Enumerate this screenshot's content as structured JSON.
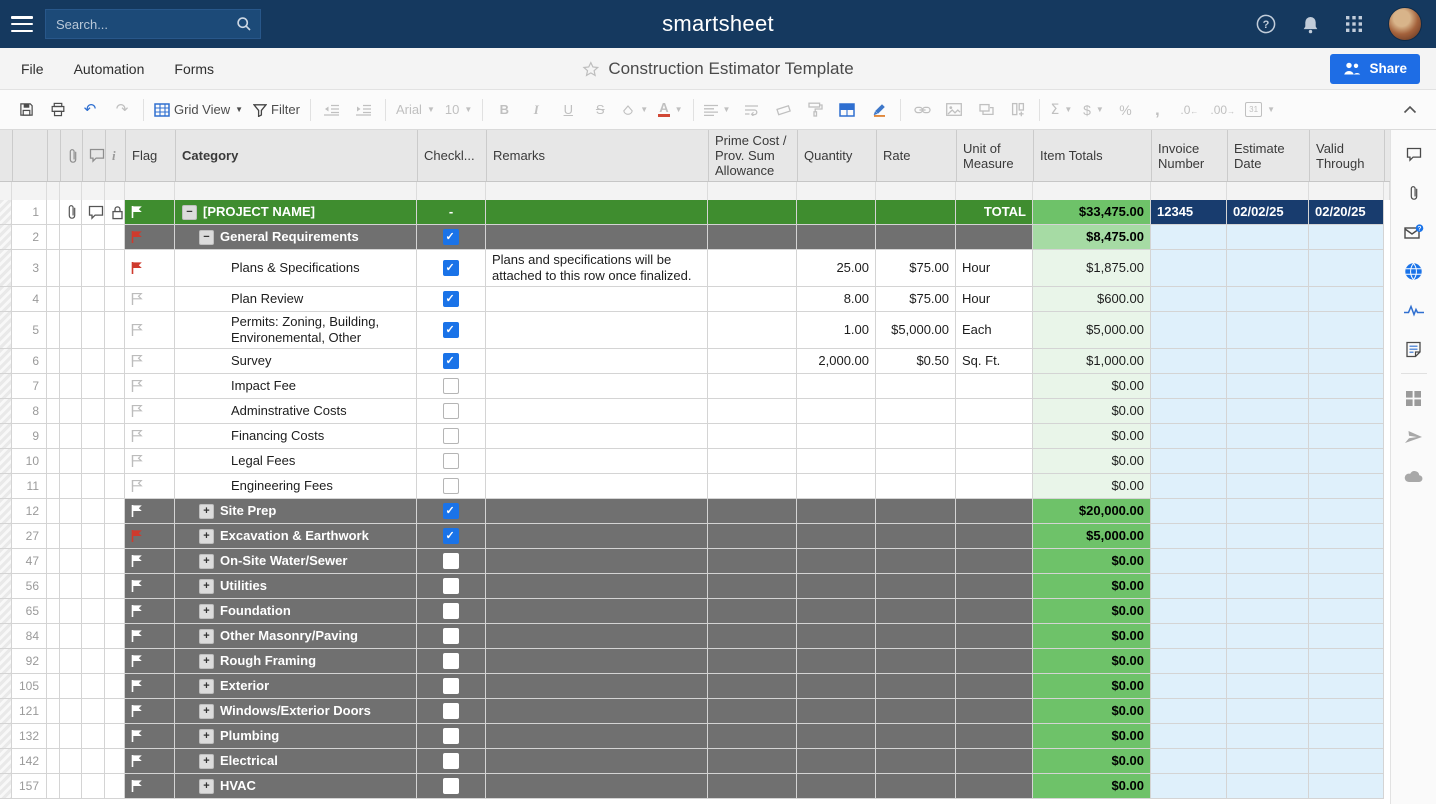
{
  "topbar": {
    "logo": "smartsheet",
    "search_placeholder": "Search..."
  },
  "menubar": {
    "items": [
      "File",
      "Automation",
      "Forms"
    ],
    "title": "Construction Estimator Template",
    "share_label": "Share"
  },
  "toolbar": {
    "items": [
      {
        "name": "save-icon",
        "icon": "save",
        "state": "enabled"
      },
      {
        "name": "print-icon",
        "icon": "print",
        "state": "enabled"
      },
      {
        "name": "undo-icon",
        "icon": "undo",
        "state": "enabled",
        "blue": true
      },
      {
        "name": "redo-icon",
        "icon": "redo",
        "state": "disabled"
      },
      {
        "name": "divider"
      },
      {
        "name": "grid-view-button",
        "icon": "gridview",
        "label": "Grid View",
        "caret": true,
        "state": "enabled"
      },
      {
        "name": "filter-button",
        "icon": "funnel",
        "label": "Filter",
        "state": "enabled"
      },
      {
        "name": "divider"
      },
      {
        "name": "outdent-icon",
        "icon": "outdent",
        "state": "disabled"
      },
      {
        "name": "indent-icon",
        "icon": "indent",
        "state": "disabled"
      },
      {
        "name": "divider"
      },
      {
        "name": "font-select",
        "label": "Arial",
        "caret": true,
        "state": "disabled"
      },
      {
        "name": "font-size-select",
        "label": "10",
        "caret": true,
        "state": "disabled"
      },
      {
        "name": "divider"
      },
      {
        "name": "bold-icon",
        "icon": "bold",
        "state": "disabled"
      },
      {
        "name": "italic-icon",
        "icon": "italic",
        "state": "disabled"
      },
      {
        "name": "underline-icon",
        "icon": "underline",
        "state": "disabled"
      },
      {
        "name": "strikethrough-icon",
        "icon": "strike",
        "state": "disabled"
      },
      {
        "name": "fill-color-icon",
        "icon": "fill",
        "caret": true,
        "state": "disabled"
      },
      {
        "name": "text-color-icon",
        "icon": "textcolor",
        "caret": true,
        "state": "disabled"
      },
      {
        "name": "divider"
      },
      {
        "name": "align-icon",
        "icon": "align",
        "caret": true,
        "state": "disabled"
      },
      {
        "name": "wrap-text-icon",
        "icon": "wrap",
        "state": "disabled"
      },
      {
        "name": "erase-icon",
        "icon": "erase",
        "state": "disabled"
      },
      {
        "name": "format-painter-icon",
        "icon": "painter",
        "state": "disabled"
      },
      {
        "name": "borders-icon",
        "icon": "borders",
        "state": "enabled"
      },
      {
        "name": "highlight-icon",
        "icon": "highlighter",
        "state": "enabled"
      },
      {
        "name": "divider"
      },
      {
        "name": "link-icon",
        "icon": "link",
        "state": "disabled"
      },
      {
        "name": "image-icon",
        "icon": "image",
        "state": "disabled"
      },
      {
        "name": "card-icon",
        "icon": "card",
        "state": "disabled"
      },
      {
        "name": "insert-column-icon",
        "icon": "column",
        "state": "disabled"
      },
      {
        "name": "divider"
      },
      {
        "name": "sum-icon",
        "icon": "sigma",
        "caret": true,
        "state": "disabled"
      },
      {
        "name": "currency-icon",
        "icon": "dollar",
        "caret": true,
        "state": "disabled"
      },
      {
        "name": "percent-icon",
        "icon": "percent",
        "state": "disabled"
      },
      {
        "name": "thousands-icon",
        "icon": "comma",
        "state": "disabled"
      },
      {
        "name": "decrease-decimal-icon",
        "icon": "dec0",
        "state": "disabled"
      },
      {
        "name": "increase-decimal-icon",
        "icon": "dec00",
        "state": "disabled"
      },
      {
        "name": "date-format-icon",
        "icon": "calendar",
        "caret": true,
        "state": "disabled"
      }
    ]
  },
  "sheet": {
    "columns": [
      {
        "key": "clip",
        "icon": "paperclip"
      },
      {
        "key": "comment",
        "icon": "comment"
      },
      {
        "key": "info",
        "icon": "info"
      },
      {
        "key": "flag",
        "label": "Flag"
      },
      {
        "key": "category",
        "label": "Category",
        "bold": true
      },
      {
        "key": "checkbox",
        "label": "Checkl..."
      },
      {
        "key": "remarks",
        "label": "Remarks"
      },
      {
        "key": "prime",
        "label": "Prime Cost / Prov. Sum Allowance"
      },
      {
        "key": "qty",
        "label": "Quantity"
      },
      {
        "key": "rate",
        "label": "Rate"
      },
      {
        "key": "unit",
        "label": "Unit of Measure"
      },
      {
        "key": "total",
        "label": "Item Totals"
      },
      {
        "key": "invoice",
        "label": "Invoice Number"
      },
      {
        "key": "estimate",
        "label": "Estimate Date"
      },
      {
        "key": "valid",
        "label": "Valid Through"
      }
    ],
    "rows": [
      {
        "num": "1",
        "type": "project",
        "icons": [
          "paperclip",
          "comment",
          "lock"
        ],
        "flag": "white",
        "expand": "minus",
        "category": "[PROJECT NAME]",
        "check": "dash",
        "unit_label": "TOTAL",
        "total": "$33,475.00",
        "invoice": "12345",
        "estimate": "02/02/25",
        "valid": "02/20/25"
      },
      {
        "num": "2",
        "type": "section",
        "flag": "red",
        "expand": "minus",
        "category": "General Requirements",
        "check": "checked",
        "total": "$8,475.00"
      },
      {
        "num": "3",
        "type": "item",
        "flag": "red",
        "category": "Plans & Specifications",
        "check": "checked",
        "remarks": "Plans and specifications will be attached to this row once finalized.",
        "qty": "25.00",
        "rate": "$75.00",
        "unit": "Hour",
        "total": "$1,875.00"
      },
      {
        "num": "4",
        "type": "item",
        "flag": "outline",
        "category": "Plan Review",
        "check": "checked",
        "qty": "8.00",
        "rate": "$75.00",
        "unit": "Hour",
        "total": "$600.00"
      },
      {
        "num": "5",
        "type": "item",
        "flag": "outline",
        "category": "Permits: Zoning, Building, Environemental, Other",
        "check": "checked",
        "qty": "1.00",
        "rate": "$5,000.00",
        "unit": "Each",
        "total": "$5,000.00"
      },
      {
        "num": "6",
        "type": "item",
        "flag": "outline",
        "category": "Survey",
        "check": "checked",
        "qty": "2,000.00",
        "rate": "$0.50",
        "unit": "Sq. Ft.",
        "total": "$1,000.00"
      },
      {
        "num": "7",
        "type": "item",
        "flag": "outline",
        "category": "Impact Fee",
        "check": "unchecked",
        "total": "$0.00"
      },
      {
        "num": "8",
        "type": "item",
        "flag": "outline",
        "category": "Adminstrative Costs",
        "check": "unchecked",
        "total": "$0.00"
      },
      {
        "num": "9",
        "type": "item",
        "flag": "outline",
        "category": "Financing Costs",
        "check": "unchecked",
        "total": "$0.00"
      },
      {
        "num": "10",
        "type": "item",
        "flag": "outline",
        "category": "Legal Fees",
        "check": "unchecked",
        "total": "$0.00"
      },
      {
        "num": "11",
        "type": "item",
        "flag": "outline",
        "category": "Engineering Fees",
        "check": "unchecked",
        "total": "$0.00"
      },
      {
        "num": "12",
        "type": "collapsed",
        "flag": "white",
        "expand": "plus",
        "category": "Site Prep",
        "check": "checked",
        "total": "$20,000.00"
      },
      {
        "num": "27",
        "type": "collapsed",
        "flag": "red",
        "expand": "plus",
        "category": "Excavation & Earthwork",
        "check": "checked",
        "total": "$5,000.00"
      },
      {
        "num": "47",
        "type": "collapsed",
        "flag": "white",
        "expand": "plus",
        "category": "On-Site Water/Sewer",
        "check": "unchecked",
        "total": "$0.00"
      },
      {
        "num": "56",
        "type": "collapsed",
        "flag": "white",
        "expand": "plus",
        "category": "Utilities",
        "check": "unchecked",
        "total": "$0.00"
      },
      {
        "num": "65",
        "type": "collapsed",
        "flag": "white",
        "expand": "plus",
        "category": "Foundation",
        "check": "unchecked",
        "total": "$0.00"
      },
      {
        "num": "84",
        "type": "collapsed",
        "flag": "white",
        "expand": "plus",
        "category": "Other Masonry/Paving",
        "check": "unchecked",
        "total": "$0.00"
      },
      {
        "num": "92",
        "type": "collapsed",
        "flag": "white",
        "expand": "plus",
        "category": "Rough Framing",
        "check": "unchecked",
        "total": "$0.00"
      },
      {
        "num": "105",
        "type": "collapsed",
        "flag": "white",
        "expand": "plus",
        "category": "Exterior",
        "check": "unchecked",
        "total": "$0.00"
      },
      {
        "num": "121",
        "type": "collapsed",
        "flag": "white",
        "expand": "plus",
        "category": "Windows/Exterior Doors",
        "check": "unchecked",
        "total": "$0.00"
      },
      {
        "num": "132",
        "type": "collapsed",
        "flag": "white",
        "expand": "plus",
        "category": "Plumbing",
        "check": "unchecked",
        "total": "$0.00"
      },
      {
        "num": "142",
        "type": "collapsed",
        "flag": "white",
        "expand": "plus",
        "category": "Electrical",
        "check": "unchecked",
        "total": "$0.00"
      },
      {
        "num": "157",
        "type": "collapsed",
        "flag": "white",
        "expand": "plus",
        "category": "HVAC",
        "check": "unchecked",
        "total": "$0.00"
      }
    ]
  },
  "rail": {
    "icons": [
      {
        "name": "conversations-icon",
        "icon": "comment"
      },
      {
        "name": "attachments-icon",
        "icon": "paperclip"
      },
      {
        "name": "update-requests-icon",
        "icon": "envhelp"
      },
      {
        "name": "publish-icon",
        "icon": "globe"
      },
      {
        "name": "activity-log-icon",
        "icon": "pulse"
      },
      {
        "name": "summary-icon",
        "icon": "note"
      },
      {
        "name": "divider"
      },
      {
        "name": "connections-icon",
        "icon": "grid2"
      },
      {
        "name": "row-send-icon",
        "icon": "send"
      },
      {
        "name": "cloud-icon",
        "icon": "cloud"
      }
    ]
  },
  "colors": {
    "topbar_navy": "#15395f",
    "accent_blue": "#1a73e8",
    "share_blue": "#1e6de5",
    "project_green": "#3f8d2f",
    "section_gray": "#707070",
    "total_green_strong": "#6ec269",
    "total_green_medium": "#a6dba4",
    "total_green_pale": "#e9f5e9",
    "invoice_navy": "#183c6e",
    "invoice_light_blue": "#dff0fb",
    "flag_red": "#cf3a2d"
  }
}
